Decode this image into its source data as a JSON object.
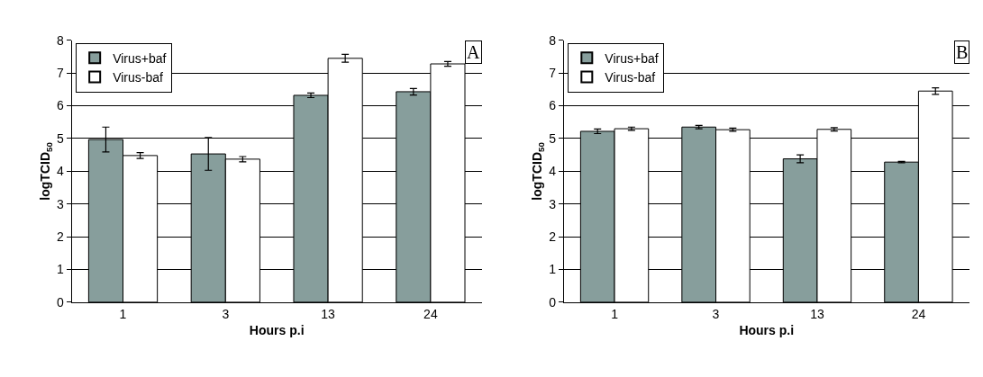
{
  "chart_data": [
    {
      "type": "bar",
      "categories": [
        "1",
        "3",
        "13",
        "24"
      ],
      "xlabel": "Hours p.i",
      "ylabel": "logTCID$_{50}$",
      "ylim": [
        0,
        8
      ],
      "yticks": [
        0,
        1,
        2,
        3,
        4,
        5,
        6,
        7,
        8
      ],
      "grid": "y",
      "legend": "top left",
      "annotations": [
        "A"
      ],
      "series": [
        {
          "name": "Virus+baf",
          "color": "#879e9c",
          "values": [
            4.97,
            4.53,
            6.32,
            6.43
          ],
          "errors": [
            0.38,
            0.5,
            0.07,
            0.1
          ]
        },
        {
          "name": "Virus-baf",
          "color": "#ffffff",
          "values": [
            4.48,
            4.37,
            7.45,
            7.28
          ],
          "errors": [
            0.09,
            0.08,
            0.12,
            0.07
          ]
        }
      ]
    },
    {
      "type": "bar",
      "categories": [
        "1",
        "3",
        "13",
        "24"
      ],
      "xlabel": "Hours p.i",
      "ylabel": "logTCID$_{50}$",
      "ylim": [
        0,
        8
      ],
      "yticks": [
        0,
        1,
        2,
        3,
        4,
        5,
        6,
        7,
        8
      ],
      "grid": "y",
      "legend": "top left",
      "annotations": [
        "B"
      ],
      "series": [
        {
          "name": "Virus+baf",
          "color": "#879e9c",
          "values": [
            5.22,
            5.35,
            4.38,
            4.28
          ],
          "errors": [
            0.07,
            0.05,
            0.12,
            0.02
          ]
        },
        {
          "name": "Virus-baf",
          "color": "#ffffff",
          "values": [
            5.3,
            5.27,
            5.28,
            6.45
          ],
          "errors": [
            0.05,
            0.05,
            0.05,
            0.1
          ]
        }
      ]
    }
  ]
}
